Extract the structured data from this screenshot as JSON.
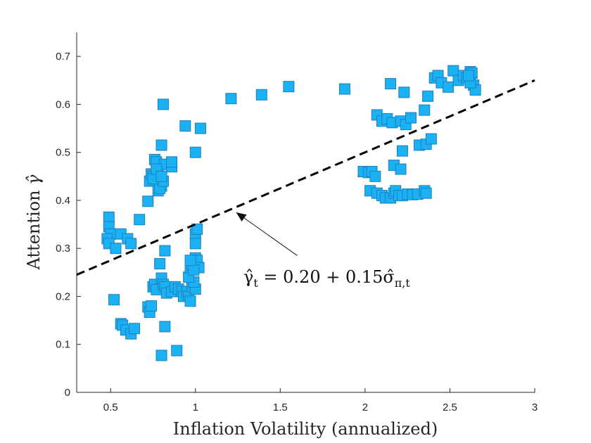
{
  "chart_data": {
    "type": "scatter",
    "xlabel": "Inflation Volatility (annualized)",
    "ylabel_text": "Attention ",
    "ylabel_symbol": "γ̂",
    "xlim": [
      0.3,
      3.0
    ],
    "ylim": [
      0,
      0.75
    ],
    "xticks": [
      0.5,
      1,
      1.5,
      2,
      2.5,
      3
    ],
    "xtick_labels": [
      "0.5",
      "1",
      "1.5",
      "2",
      "2.5",
      "3"
    ],
    "yticks": [
      0,
      0.1,
      0.2,
      0.3,
      0.4,
      0.5,
      0.6,
      0.7
    ],
    "ytick_labels": [
      "0",
      "0.1",
      "0.2",
      "0.3",
      "0.4",
      "0.5",
      "0.6",
      "0.7"
    ],
    "grid": false,
    "marker_color": "#1AB2F5",
    "marker_edge_color": "#1F7FB8",
    "fit_line": {
      "intercept": 0.2,
      "slope": 0.15,
      "style": "dashed",
      "color": "#000000"
    },
    "annotation": {
      "text": "γ̂t = 0.20 + 0.15σ̂π,t",
      "part1": "γ̂",
      "sub1": "t",
      "part2": " = 0.20 + 0.15",
      "part3": "σ̂",
      "sub2": "π,t",
      "arrow_from": [
        1.6,
        0.285
      ],
      "arrow_to": [
        1.24,
        0.375
      ]
    },
    "points": [
      [
        0.49,
        0.365
      ],
      [
        0.49,
        0.345
      ],
      [
        0.5,
        0.33
      ],
      [
        0.48,
        0.32
      ],
      [
        0.49,
        0.31
      ],
      [
        0.53,
        0.3
      ],
      [
        0.56,
        0.33
      ],
      [
        0.6,
        0.32
      ],
      [
        0.62,
        0.31
      ],
      [
        0.52,
        0.193
      ],
      [
        0.56,
        0.143
      ],
      [
        0.57,
        0.14
      ],
      [
        0.59,
        0.13
      ],
      [
        0.62,
        0.122
      ],
      [
        0.64,
        0.133
      ],
      [
        0.67,
        0.36
      ],
      [
        0.72,
        0.398
      ],
      [
        0.73,
        0.44
      ],
      [
        0.74,
        0.455
      ],
      [
        0.75,
        0.45
      ],
      [
        0.76,
        0.485
      ],
      [
        0.77,
        0.48
      ],
      [
        0.78,
        0.46
      ],
      [
        0.79,
        0.44
      ],
      [
        0.8,
        0.43
      ],
      [
        0.78,
        0.42
      ],
      [
        0.79,
        0.425
      ],
      [
        0.81,
        0.44
      ],
      [
        0.8,
        0.515
      ],
      [
        0.82,
        0.475
      ],
      [
        0.86,
        0.47
      ],
      [
        0.86,
        0.48
      ],
      [
        0.75,
        0.445
      ],
      [
        0.77,
        0.465
      ],
      [
        0.8,
        0.45
      ],
      [
        0.81,
        0.6
      ],
      [
        0.94,
        0.555
      ],
      [
        1.0,
        0.5
      ],
      [
        1.03,
        0.55
      ],
      [
        0.72,
        0.178
      ],
      [
        0.73,
        0.167
      ],
      [
        0.74,
        0.18
      ],
      [
        0.75,
        0.22
      ],
      [
        0.76,
        0.225
      ],
      [
        0.77,
        0.214
      ],
      [
        0.79,
        0.268
      ],
      [
        0.8,
        0.238
      ],
      [
        0.81,
        0.225
      ],
      [
        0.82,
        0.22
      ],
      [
        0.83,
        0.207
      ],
      [
        0.82,
        0.295
      ],
      [
        0.82,
        0.137
      ],
      [
        0.8,
        0.077
      ],
      [
        0.89,
        0.087
      ],
      [
        0.86,
        0.21
      ],
      [
        0.88,
        0.22
      ],
      [
        0.9,
        0.215
      ],
      [
        0.92,
        0.21
      ],
      [
        0.93,
        0.2
      ],
      [
        0.95,
        0.21
      ],
      [
        0.96,
        0.2
      ],
      [
        0.97,
        0.19
      ],
      [
        0.98,
        0.22
      ],
      [
        1.0,
        0.215
      ],
      [
        0.99,
        0.23
      ],
      [
        0.96,
        0.24
      ],
      [
        0.97,
        0.26
      ],
      [
        0.98,
        0.265
      ],
      [
        1.0,
        0.28
      ],
      [
        1.01,
        0.275
      ],
      [
        1.02,
        0.26
      ],
      [
        0.99,
        0.255
      ],
      [
        0.97,
        0.275
      ],
      [
        1.0,
        0.33
      ],
      [
        1.01,
        0.34
      ],
      [
        1.0,
        0.31
      ],
      [
        1.21,
        0.612
      ],
      [
        1.39,
        0.62
      ],
      [
        1.55,
        0.637
      ],
      [
        1.88,
        0.632
      ],
      [
        1.99,
        0.46
      ],
      [
        2.02,
        0.458
      ],
      [
        2.04,
        0.46
      ],
      [
        2.06,
        0.45
      ],
      [
        2.03,
        0.42
      ],
      [
        2.07,
        0.415
      ],
      [
        2.1,
        0.41
      ],
      [
        2.12,
        0.405
      ],
      [
        2.15,
        0.405
      ],
      [
        2.17,
        0.415
      ],
      [
        2.18,
        0.42
      ],
      [
        2.2,
        0.41
      ],
      [
        2.22,
        0.41
      ],
      [
        2.25,
        0.413
      ],
      [
        2.28,
        0.412
      ],
      [
        2.31,
        0.413
      ],
      [
        2.35,
        0.42
      ],
      [
        2.36,
        0.415
      ],
      [
        2.17,
        0.473
      ],
      [
        2.21,
        0.465
      ],
      [
        2.22,
        0.503
      ],
      [
        2.07,
        0.578
      ],
      [
        2.1,
        0.565
      ],
      [
        2.13,
        0.57
      ],
      [
        2.16,
        0.562
      ],
      [
        2.21,
        0.565
      ],
      [
        2.24,
        0.558
      ],
      [
        2.27,
        0.572
      ],
      [
        2.32,
        0.515
      ],
      [
        2.36,
        0.517
      ],
      [
        2.39,
        0.528
      ],
      [
        2.35,
        0.588
      ],
      [
        2.37,
        0.617
      ],
      [
        2.15,
        0.643
      ],
      [
        2.23,
        0.625
      ],
      [
        2.41,
        0.655
      ],
      [
        2.43,
        0.66
      ],
      [
        2.45,
        0.645
      ],
      [
        2.49,
        0.636
      ],
      [
        2.52,
        0.67
      ],
      [
        2.55,
        0.65
      ],
      [
        2.58,
        0.66
      ],
      [
        2.6,
        0.655
      ],
      [
        2.62,
        0.668
      ],
      [
        2.63,
        0.665
      ],
      [
        2.64,
        0.64
      ],
      [
        2.65,
        0.63
      ],
      [
        2.62,
        0.645
      ],
      [
        2.61,
        0.66
      ]
    ]
  }
}
